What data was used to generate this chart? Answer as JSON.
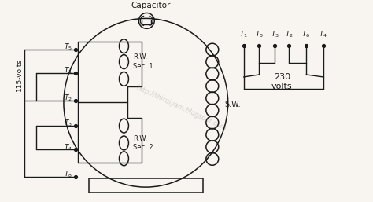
{
  "bg_color": "#f8f5f0",
  "line_color": "#1a1a1a",
  "title": "Capacitor",
  "label_115v": "115-volts",
  "label_230v": "230\nvolts",
  "label_sw": "S.W.",
  "label_rw1": "R.W.\nSec. 1",
  "label_rw2": "R.W.\nSec. 2",
  "term_names_left": [
    "$T_5$",
    "$T_1$",
    "$T_2$",
    "$T_3$",
    "$T_4$",
    "$T_8$"
  ],
  "term_names_right": [
    "$T_1$",
    "$T_8$",
    "$T_3$",
    "$T_2$",
    "$T_6$",
    "$T_4$"
  ]
}
